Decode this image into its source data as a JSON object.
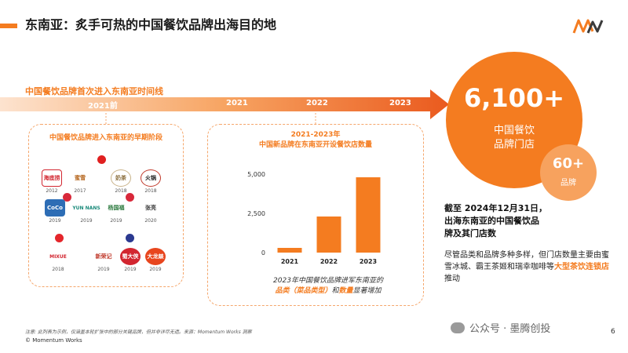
{
  "header": {
    "title": "东南亚：炙手可热的中国餐饮品牌出海目的地",
    "logo_text": "MW",
    "accent_color": "#f47c20"
  },
  "timeline": {
    "heading": "中国餐饮品牌首次进入东南亚时间线",
    "labels": [
      "2021前",
      "2021",
      "2022",
      "2023"
    ]
  },
  "early_panel": {
    "title": "中国餐饮品牌进入东南亚的早期阶段",
    "brands": [
      {
        "name": "海底捞",
        "year": "2012"
      },
      {
        "name": "蜜雪",
        "year": "2017"
      },
      {
        "name": "奶茶",
        "year": "2018"
      },
      {
        "name": "火锅",
        "year": "2018"
      },
      {
        "name": "CoCo",
        "year": "2019"
      },
      {
        "name": "YUN NANS",
        "year": "2019"
      },
      {
        "name": "杨国福",
        "year": "2019"
      },
      {
        "name": "张亮",
        "year": "2020"
      },
      {
        "name": "MIXUE",
        "year": "2018"
      },
      {
        "name": "新荣记",
        "year": "2019"
      },
      {
        "name": "蜀大侠",
        "year": "2019"
      },
      {
        "name": "大龙燚",
        "year": "2019"
      }
    ]
  },
  "chart_panel": {
    "title_line1": "2021-2023年",
    "title_line2": "中国新品牌在东南亚开设餐饮店数量",
    "note_line1": "2023年中国餐饮品牌进军东南亚的",
    "note_hl1": "品类（菜品类型）",
    "note_mid": "和",
    "note_hl2": "数量",
    "note_end": "显著增加"
  },
  "chart_data": {
    "type": "bar",
    "categories": [
      "2021",
      "2022",
      "2023"
    ],
    "values": [
      300,
      2300,
      4800
    ],
    "ylim": [
      0,
      6000
    ],
    "yticks": [
      0,
      2500,
      5000
    ],
    "ytick_labels": [
      "0",
      "2,500",
      "5,000"
    ],
    "bar_color": "#f47c20"
  },
  "stats": {
    "big_number": "6,100+",
    "big_label_line1": "中国餐饮",
    "big_label_line2": "品牌门店",
    "small_number": "60+",
    "small_label": "品牌",
    "desc_line1": "截至 2024年12月31日，",
    "desc_line2": "出海东南亚的中国餐饮品",
    "desc_line3": "牌及其门店数",
    "note_part1": "尽管品类和品牌多种多样，但门店数量主要由蜜雪冰城、霸王茶姬和瑞幸咖啡等",
    "note_hl": "大型茶饮连锁店",
    "note_part2": "推动"
  },
  "footer": {
    "footnote": "注意: 此列表为示例，仅涵盖本轮扩张中的部分关键品牌，但并非详尽无遗。来源：Momentum Works 洞察",
    "copyright": "© Momentum Works",
    "watermark": "公众号 · 墨腾创投",
    "page_number": "6"
  }
}
